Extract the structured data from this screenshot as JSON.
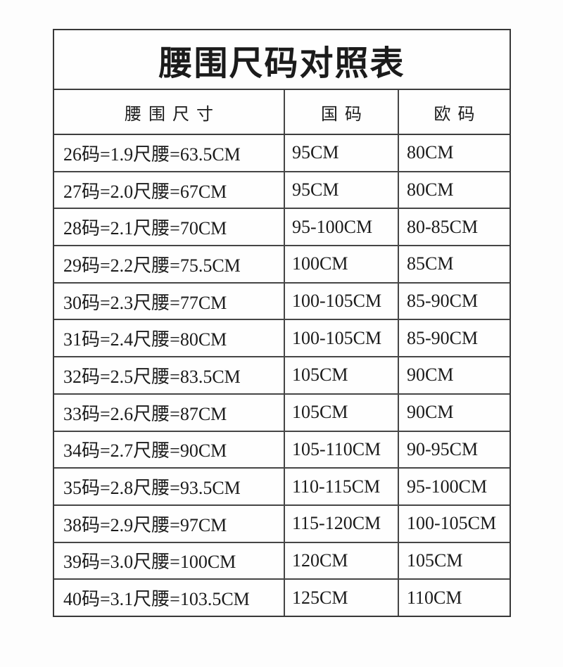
{
  "page": {
    "background": "#fdfdfd"
  },
  "chart_data": {
    "type": "table",
    "title": "腰围尺码对照表",
    "columns": [
      "腰围尺寸",
      "国码",
      "欧码"
    ],
    "rows": [
      [
        "26码=1.9尺腰=63.5CM",
        "95CM",
        "80CM"
      ],
      [
        "27码=2.0尺腰=67CM",
        "95CM",
        "80CM"
      ],
      [
        "28码=2.1尺腰=70CM",
        "95-100CM",
        "80-85CM"
      ],
      [
        "29码=2.2尺腰=75.5CM",
        "100CM",
        "85CM"
      ],
      [
        "30码=2.3尺腰=77CM",
        "100-105CM",
        "85-90CM"
      ],
      [
        "31码=2.4尺腰=80CM",
        "100-105CM",
        "85-90CM"
      ],
      [
        "32码=2.5尺腰=83.5CM",
        "105CM",
        "90CM"
      ],
      [
        "33码=2.6尺腰=87CM",
        "105CM",
        "90CM"
      ],
      [
        "34码=2.7尺腰=90CM",
        "105-110CM",
        "90-95CM"
      ],
      [
        "35码=2.8尺腰=93.5CM",
        "110-115CM",
        "95-100CM"
      ],
      [
        "38码=2.9尺腰=97CM",
        "115-120CM",
        "100-105CM"
      ],
      [
        "39码=3.0尺腰=100CM",
        "120CM",
        "105CM"
      ],
      [
        "40码=3.1尺腰=103.5CM",
        "125CM",
        "110CM"
      ]
    ],
    "layout": {
      "grid": "on",
      "title_position": "top-spanning",
      "column_alignment": [
        "left",
        "left",
        "left"
      ],
      "header_alignment": "center"
    },
    "colors": {
      "border": "#3d3d3d",
      "text": "#1b1b1b",
      "table_background": "#fefefe"
    }
  }
}
